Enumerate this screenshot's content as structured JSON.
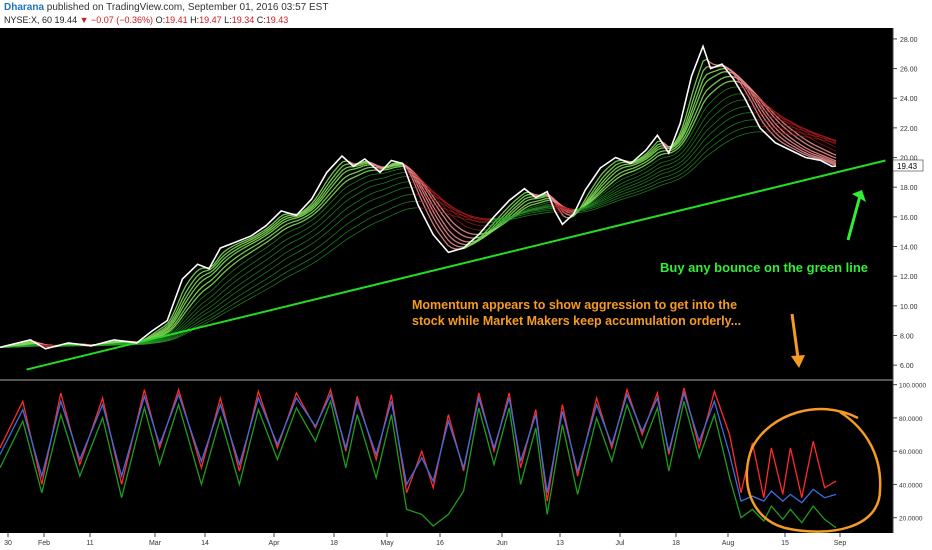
{
  "header": {
    "author": "Dharana",
    "published_text": "published on TradingView.com, September 01, 2016 03:57 EST",
    "symbol": "NYSE:X, 60",
    "last": "19.44",
    "change": "▼ −0.07 (−0.36%)",
    "o_label": "O:",
    "o_val": "19.41",
    "h_label": "H:",
    "h_val": "19.47",
    "l_label": "L:",
    "l_val": "19.34",
    "c_label": "C:",
    "c_val": "19.43"
  },
  "chart_data": [
    {
      "type": "line",
      "title": "",
      "price_label": "19.43",
      "y_ticks": [
        "28.00",
        "26.00",
        "24.00",
        "22.00",
        "20.00",
        "18.00",
        "16.00",
        "14.00",
        "12.00",
        "10.00",
        "8.00",
        "6.00"
      ],
      "ylim": [
        5.2,
        28.6
      ],
      "x_ticks": [
        "30",
        "Feb",
        "11",
        "Mar",
        "14",
        "Apr",
        "18",
        "May",
        "16",
        "Jun",
        "13",
        "Jul",
        "18",
        "Aug",
        "15",
        "Sep"
      ],
      "price_series": [
        [
          0,
          7.2
        ],
        [
          8,
          7.7
        ],
        [
          12,
          7.1
        ],
        [
          18,
          7.5
        ],
        [
          24,
          7.3
        ],
        [
          30,
          7.7
        ],
        [
          36,
          7.5
        ],
        [
          40,
          8.3
        ],
        [
          44,
          9.0
        ],
        [
          48,
          11.8
        ],
        [
          52,
          12.8
        ],
        [
          55,
          12.5
        ],
        [
          58,
          13.9
        ],
        [
          62,
          14.3
        ],
        [
          66,
          14.7
        ],
        [
          70,
          15.4
        ],
        [
          74,
          16.4
        ],
        [
          78,
          16.1
        ],
        [
          82,
          17.2
        ],
        [
          86,
          19.0
        ],
        [
          90,
          20.1
        ],
        [
          93,
          19.4
        ],
        [
          96,
          19.9
        ],
        [
          100,
          19.0
        ],
        [
          103,
          19.8
        ],
        [
          106,
          19.6
        ],
        [
          110,
          16.8
        ],
        [
          114,
          14.8
        ],
        [
          118,
          13.6
        ],
        [
          122,
          13.9
        ],
        [
          126,
          14.8
        ],
        [
          130,
          16.0
        ],
        [
          134,
          17.1
        ],
        [
          138,
          17.9
        ],
        [
          141,
          17.3
        ],
        [
          144,
          17.7
        ],
        [
          146,
          16.4
        ],
        [
          148,
          15.5
        ],
        [
          151,
          16.2
        ],
        [
          154,
          17.8
        ],
        [
          158,
          19.3
        ],
        [
          162,
          20.0
        ],
        [
          166,
          19.6
        ],
        [
          170,
          20.5
        ],
        [
          173,
          21.5
        ],
        [
          176,
          20.3
        ],
        [
          179,
          22.3
        ],
        [
          182,
          25.5
        ],
        [
          185,
          27.5
        ],
        [
          187,
          26.0
        ],
        [
          190,
          26.3
        ],
        [
          193,
          25.3
        ],
        [
          196,
          24.0
        ],
        [
          200,
          22.0
        ],
        [
          204,
          21.0
        ],
        [
          208,
          20.5
        ],
        [
          212,
          20.0
        ],
        [
          216,
          19.8
        ],
        [
          219,
          19.4
        ],
        [
          220,
          19.43
        ]
      ],
      "trendline": [
        [
          7,
          5.7
        ],
        [
          233,
          19.8
        ]
      ],
      "annotations": {
        "green_note": "Buy any bounce on the green line",
        "orange_note_line1": "Momentum appears to show aggression to get into the",
        "orange_note_line2": "stock while Market Makers keep accumulation orderly..."
      },
      "colors": {
        "background": "#000000",
        "price": "#ffffff",
        "trendline": "#22dd22",
        "green_note": "#33ee33",
        "orange_note": "#f59a23",
        "ribbon_fast_up": "#7ed957",
        "ribbon_fast_down": "#e8878a",
        "ribbon_slow_up": "#2aa02a",
        "ribbon_slow_down": "#b11d1d"
      }
    },
    {
      "type": "line",
      "title": "",
      "y_ticks": [
        "100.0000",
        "80.0000",
        "60.0000",
        "40.0000",
        "20.0000"
      ],
      "ylim": [
        12,
        101
      ],
      "series": [
        {
          "color": "#ff2a2a",
          "values": [
            [
              0,
              62
            ],
            [
              6,
              90
            ],
            [
              11,
              40
            ],
            [
              16,
              95
            ],
            [
              21,
              52
            ],
            [
              27,
              92
            ],
            [
              32,
              40
            ],
            [
              38,
              97
            ],
            [
              42,
              62
            ],
            [
              47,
              97
            ],
            [
              53,
              50
            ],
            [
              58,
              92
            ],
            [
              63,
              48
            ],
            [
              68,
              96
            ],
            [
              73,
              62
            ],
            [
              78,
              95
            ],
            [
              83,
              74
            ],
            [
              87,
              97
            ],
            [
              91,
              60
            ],
            [
              94,
              93
            ],
            [
              99,
              55
            ],
            [
              103,
              94
            ],
            [
              107,
              35
            ],
            [
              111,
              60
            ],
            [
              114,
              38
            ],
            [
              118,
              82
            ],
            [
              122,
              48
            ],
            [
              126,
              95
            ],
            [
              130,
              60
            ],
            [
              134,
              95
            ],
            [
              137,
              50
            ],
            [
              141,
              85
            ],
            [
              144,
              30
            ],
            [
              148,
              88
            ],
            [
              152,
              45
            ],
            [
              157,
              92
            ],
            [
              161,
              62
            ],
            [
              165,
              97
            ],
            [
              169,
              70
            ],
            [
              173,
              95
            ],
            [
              176,
              58
            ],
            [
              180,
              98
            ],
            [
              184,
              62
            ],
            [
              188,
              96
            ],
            [
              192,
              70
            ],
            [
              195,
              35
            ],
            [
              198,
              65
            ],
            [
              201,
              32
            ],
            [
              203,
              62
            ],
            [
              206,
              34
            ],
            [
              208,
              62
            ],
            [
              211,
              32
            ],
            [
              214,
              66
            ],
            [
              217,
              38
            ],
            [
              220,
              42
            ]
          ]
        },
        {
          "color": "#3a6ee0",
          "values": [
            [
              0,
              58
            ],
            [
              6,
              85
            ],
            [
              11,
              45
            ],
            [
              16,
              90
            ],
            [
              21,
              55
            ],
            [
              27,
              88
            ],
            [
              32,
              45
            ],
            [
              38,
              93
            ],
            [
              42,
              64
            ],
            [
              47,
              94
            ],
            [
              53,
              54
            ],
            [
              58,
              88
            ],
            [
              63,
              52
            ],
            [
              68,
              92
            ],
            [
              73,
              64
            ],
            [
              78,
              92
            ],
            [
              83,
              75
            ],
            [
              87,
              94
            ],
            [
              91,
              62
            ],
            [
              94,
              90
            ],
            [
              99,
              58
            ],
            [
              103,
              90
            ],
            [
              107,
              40
            ],
            [
              111,
              56
            ],
            [
              114,
              42
            ],
            [
              118,
              78
            ],
            [
              122,
              50
            ],
            [
              126,
              92
            ],
            [
              130,
              62
            ],
            [
              134,
              92
            ],
            [
              137,
              54
            ],
            [
              141,
              82
            ],
            [
              144,
              35
            ],
            [
              148,
              84
            ],
            [
              152,
              48
            ],
            [
              157,
              88
            ],
            [
              161,
              64
            ],
            [
              165,
              94
            ],
            [
              169,
              72
            ],
            [
              173,
              92
            ],
            [
              176,
              60
            ],
            [
              180,
              95
            ],
            [
              184,
              66
            ],
            [
              188,
              90
            ],
            [
              192,
              58
            ],
            [
              195,
              30
            ],
            [
              198,
              33
            ],
            [
              201,
              30
            ],
            [
              203,
              36
            ],
            [
              206,
              30
            ],
            [
              208,
              34
            ],
            [
              211,
              29
            ],
            [
              214,
              37
            ],
            [
              217,
              32
            ],
            [
              220,
              34
            ]
          ]
        },
        {
          "color": "#1f9c1f",
          "values": [
            [
              0,
              50
            ],
            [
              6,
              78
            ],
            [
              11,
              35
            ],
            [
              16,
              82
            ],
            [
              21,
              45
            ],
            [
              27,
              80
            ],
            [
              32,
              32
            ],
            [
              38,
              86
            ],
            [
              42,
              52
            ],
            [
              47,
              88
            ],
            [
              53,
              40
            ],
            [
              58,
              80
            ],
            [
              63,
              40
            ],
            [
              68,
              85
            ],
            [
              73,
              55
            ],
            [
              78,
              86
            ],
            [
              83,
              66
            ],
            [
              87,
              90
            ],
            [
              91,
              50
            ],
            [
              94,
              82
            ],
            [
              99,
              44
            ],
            [
              103,
              82
            ],
            [
              107,
              25
            ],
            [
              111,
              22
            ],
            [
              114,
              15
            ],
            [
              118,
              22
            ],
            [
              122,
              36
            ],
            [
              126,
              86
            ],
            [
              130,
              52
            ],
            [
              134,
              86
            ],
            [
              137,
              40
            ],
            [
              141,
              74
            ],
            [
              144,
              22
            ],
            [
              148,
              76
            ],
            [
              152,
              34
            ],
            [
              157,
              80
            ],
            [
              161,
              54
            ],
            [
              165,
              88
            ],
            [
              169,
              62
            ],
            [
              173,
              86
            ],
            [
              176,
              48
            ],
            [
              180,
              90
            ],
            [
              184,
              56
            ],
            [
              188,
              82
            ],
            [
              192,
              44
            ],
            [
              195,
              20
            ],
            [
              198,
              25
            ],
            [
              201,
              18
            ],
            [
              203,
              27
            ],
            [
              206,
              19
            ],
            [
              208,
              25
            ],
            [
              211,
              17
            ],
            [
              214,
              27
            ],
            [
              217,
              19
            ],
            [
              220,
              14
            ]
          ]
        }
      ],
      "colors": {
        "background": "#000000",
        "highlight_circle": "#f59a23"
      }
    }
  ]
}
